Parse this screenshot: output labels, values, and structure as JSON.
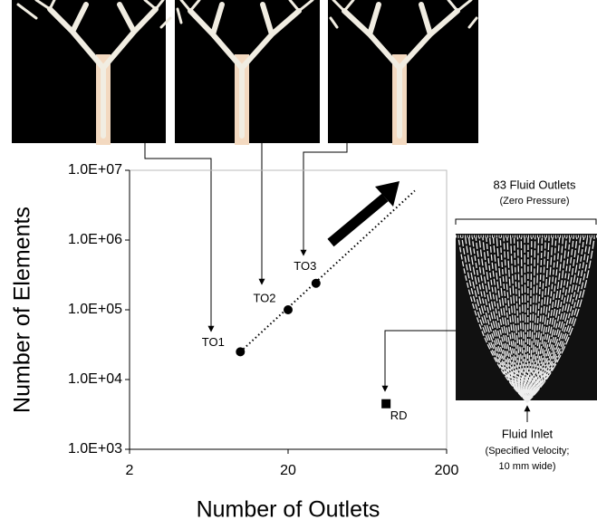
{
  "chart_data": {
    "type": "scatter",
    "x_label": "Number of Outlets",
    "y_label": "Number of Elements",
    "log_x": true,
    "log_y": true,
    "xlim": [
      2,
      200
    ],
    "xticks": [
      2,
      20,
      200
    ],
    "ylim": [
      1000,
      10000000
    ],
    "yticks": [
      {
        "value": 1000,
        "label": "1.0E+03"
      },
      {
        "value": 10000,
        "label": "1.0E+04"
      },
      {
        "value": 100000,
        "label": "1.0E+05"
      },
      {
        "value": 1000000,
        "label": "1.0E+06"
      },
      {
        "value": 10000000,
        "label": "1.0E+07"
      }
    ],
    "x": [
      10,
      20,
      30,
      83
    ],
    "values": [
      25000,
      100000,
      240000,
      4500
    ],
    "point_labels": [
      "TO1",
      "TO2",
      "TO3",
      "RD"
    ],
    "markers": [
      "circle",
      "circle",
      "circle",
      "square"
    ],
    "color": "#000000",
    "trendline": {
      "x": [
        10,
        126
      ],
      "y": [
        25000,
        5100000
      ]
    },
    "annotations": [
      "83 Fluid Outlets",
      "(Zero Pressure)",
      "Fluid Inlet",
      "(Specified Velocity;",
      "10 mm wide)"
    ]
  }
}
